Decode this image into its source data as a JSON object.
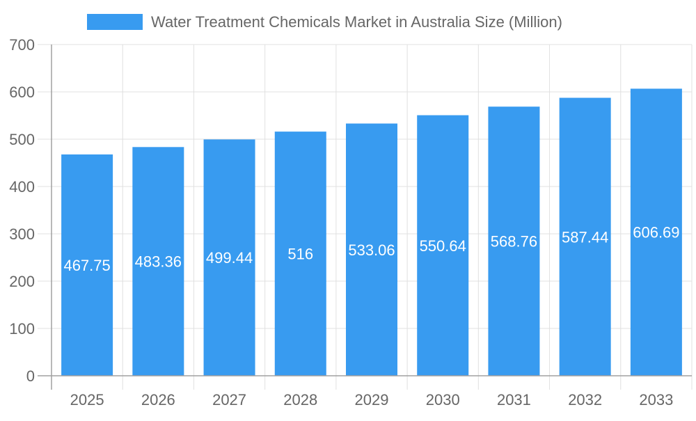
{
  "chart_data": {
    "type": "bar",
    "title": "",
    "xlabel": "",
    "ylabel": "",
    "categories": [
      "2025",
      "2026",
      "2027",
      "2028",
      "2029",
      "2030",
      "2031",
      "2032",
      "2033"
    ],
    "series": [
      {
        "name": "Water Treatment Chemicals Market in Australia Size (Million)",
        "values": [
          467.75,
          483.36,
          499.44,
          516,
          533.06,
          550.64,
          568.76,
          587.44,
          606.69
        ],
        "labels": [
          "467.75",
          "483.36",
          "499.44",
          "516",
          "533.06",
          "550.64",
          "568.76",
          "587.44",
          "606.69"
        ]
      }
    ],
    "ylim": [
      0,
      700
    ],
    "yticks": [
      "0",
      "100",
      "200",
      "300",
      "400",
      "500",
      "600",
      "700"
    ],
    "grid": true,
    "legend": "top",
    "colors": {
      "bar": "#389bf0",
      "grid": "#e0e0e0",
      "axis": "#a0a0a0",
      "text": "#666666",
      "data_label": "#ffffff"
    }
  }
}
